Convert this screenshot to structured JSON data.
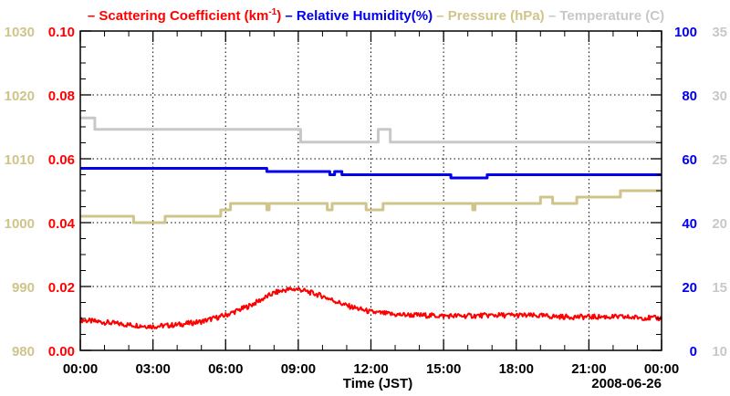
{
  "chart_data": {
    "type": "line",
    "date_label": "2008-06-26",
    "xlabel": "Time (JST)",
    "x_range_hours": [
      0,
      24
    ],
    "x_ticks": [
      {
        "h": 0,
        "label": "00:00"
      },
      {
        "h": 3,
        "label": "03:00"
      },
      {
        "h": 6,
        "label": "06:00"
      },
      {
        "h": 9,
        "label": "09:00"
      },
      {
        "h": 12,
        "label": "12:00"
      },
      {
        "h": 15,
        "label": "15:00"
      },
      {
        "h": 18,
        "label": "18:00"
      },
      {
        "h": 21,
        "label": "21:00"
      },
      {
        "h": 24,
        "label": "00:00"
      }
    ],
    "legend": [
      {
        "dash": "–",
        "text": "Scattering Coefficient (km",
        "sup": "-1",
        "after": ")",
        "color": "#ff0000"
      },
      {
        "dash": "–",
        "text": "Relative Humidity(%)",
        "sup": "",
        "after": "",
        "color": "#0000ee"
      },
      {
        "dash": "–",
        "text": "Pressure (hPa)",
        "sup": "",
        "after": "",
        "color": "#cfc48a"
      },
      {
        "dash": "–",
        "text": "Temperature (",
        "sup": "",
        "after": "C)",
        "color": "#c8c8c8"
      }
    ],
    "axes": {
      "pressure": {
        "color": "#cfc48a",
        "range": [
          980,
          1030
        ],
        "ticks": [
          "980",
          "990",
          "1000",
          "1010",
          "1020",
          "1030"
        ]
      },
      "scattering": {
        "color": "#ff0000",
        "range": [
          0.0,
          0.1
        ],
        "ticks": [
          "0.00",
          "0.02",
          "0.04",
          "0.06",
          "0.08",
          "0.10"
        ]
      },
      "humidity": {
        "color": "#0000ee",
        "range": [
          0,
          100
        ],
        "ticks": [
          "0",
          "20",
          "40",
          "60",
          "80",
          "100"
        ]
      },
      "temperature": {
        "color": "#c8c8c8",
        "range": [
          10,
          35
        ],
        "ticks": [
          "10",
          "15",
          "20",
          "25",
          "30",
          "35"
        ]
      }
    },
    "series": [
      {
        "name": "Scattering Coefficient",
        "axis": "scattering",
        "color": "#ff0000",
        "x_hours": [
          0,
          1,
          2,
          3,
          4,
          5,
          6,
          7,
          8,
          8.5,
          9,
          10,
          11,
          12,
          13,
          14,
          15,
          16,
          17,
          18,
          19,
          20,
          21,
          22,
          23,
          24
        ],
        "values": [
          0.0095,
          0.0088,
          0.008,
          0.0075,
          0.008,
          0.009,
          0.011,
          0.014,
          0.018,
          0.019,
          0.0192,
          0.017,
          0.014,
          0.012,
          0.0112,
          0.011,
          0.0108,
          0.0108,
          0.011,
          0.011,
          0.0108,
          0.0105,
          0.0105,
          0.0105,
          0.0103,
          0.01
        ]
      },
      {
        "name": "Relative Humidity",
        "axis": "humidity",
        "color": "#0000ee",
        "x_hours": [
          0,
          7.7,
          7.7,
          10.3,
          10.3,
          10.5,
          10.5,
          10.8,
          10.8,
          15.3,
          15.3,
          16.8,
          16.8,
          17.1,
          17.1,
          24
        ],
        "values": [
          57,
          57,
          56,
          56,
          55,
          55,
          56,
          56,
          55,
          55,
          54,
          54,
          55,
          55,
          55,
          55
        ]
      },
      {
        "name": "Pressure",
        "axis": "pressure",
        "color": "#cfc48a",
        "x_hours": [
          0,
          2.2,
          2.2,
          3.5,
          3.5,
          5.8,
          5.8,
          6.2,
          6.2,
          7.7,
          7.7,
          7.8,
          7.8,
          9.0,
          9.0,
          10.2,
          10.2,
          10.4,
          10.4,
          11.8,
          11.8,
          12.5,
          12.5,
          12.8,
          12.8,
          16.2,
          16.2,
          16.3,
          16.3,
          19.0,
          19.0,
          19.5,
          19.5,
          20.5,
          20.5,
          22.3,
          22.3,
          22.5,
          22.5,
          24
        ],
        "values": [
          1001,
          1001,
          1000,
          1000,
          1001,
          1001,
          1002,
          1002,
          1003,
          1003,
          1002,
          1002,
          1003,
          1003,
          1003,
          1003,
          1002,
          1002,
          1003,
          1003,
          1002,
          1002,
          1003,
          1003,
          1003,
          1003,
          1002,
          1002,
          1003,
          1003,
          1004,
          1004,
          1003,
          1003,
          1004,
          1004,
          1005,
          1005,
          1005,
          1005
        ]
      },
      {
        "name": "Temperature",
        "axis": "temperature",
        "color": "#c8c8c8",
        "x_hours": [
          0,
          0.6,
          0.6,
          9.1,
          9.1,
          12.3,
          12.3,
          12.8,
          12.8,
          24
        ],
        "values": [
          28.2,
          28.2,
          27.3,
          27.3,
          26.3,
          26.3,
          27.3,
          27.3,
          26.3,
          26.3
        ]
      }
    ]
  }
}
